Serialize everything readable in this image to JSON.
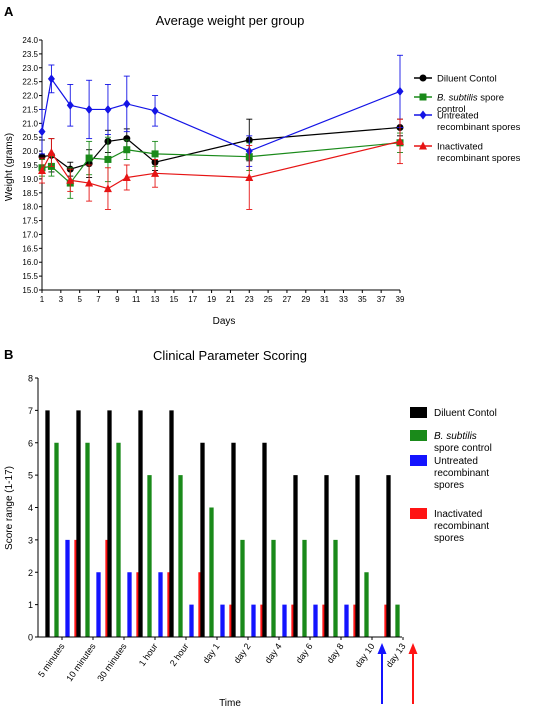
{
  "chart_data": [
    {
      "panel_label": "A",
      "type": "line",
      "title": "Average weight per group",
      "xlabel": "Days",
      "ylabel": "Weight (grams)",
      "ylim": [
        15.0,
        24.0
      ],
      "xlim": [
        1,
        39
      ],
      "y_ticks": [
        "15.0",
        "15.5",
        "16.0",
        "16.5",
        "17.0",
        "17.5",
        "18.0",
        "18.5",
        "19.0",
        "19.5",
        "20.0",
        "20.5",
        "21.0",
        "21.5",
        "22.0",
        "22.5",
        "23.0",
        "23.5",
        "24.0"
      ],
      "x_ticks": [
        "1",
        "3",
        "5",
        "7",
        "9",
        "11",
        "13",
        "15",
        "17",
        "19",
        "21",
        "23",
        "25",
        "27",
        "29",
        "31",
        "33",
        "35",
        "37",
        "39"
      ],
      "legend_position": "right",
      "grid": false,
      "series": [
        {
          "name": "Diluent Contol",
          "color": "#000000",
          "marker": "circle",
          "x": [
            1,
            2,
            4,
            6,
            8,
            10,
            13,
            23,
            39
          ],
          "y": [
            19.8,
            19.85,
            19.35,
            19.55,
            20.35,
            20.45,
            19.6,
            20.4,
            20.85
          ],
          "err": [
            0.6,
            0.6,
            0.25,
            0.5,
            0.4,
            0.35,
            0.3,
            0.75,
            0.3
          ]
        },
        {
          "name_italic": "B. subtilis",
          "name": " spore control",
          "color": "#1a8a1a",
          "marker": "square",
          "x": [
            1,
            2,
            4,
            6,
            8,
            10,
            13,
            23,
            39
          ],
          "y": [
            19.4,
            19.45,
            18.85,
            19.75,
            19.7,
            20.05,
            19.9,
            19.8,
            20.3
          ],
          "err": [
            0.3,
            0.35,
            0.55,
            0.6,
            0.8,
            0.35,
            0.45,
            0.5,
            0.35
          ]
        },
        {
          "name": "Untreated recombinant spores",
          "color": "#1414e6",
          "marker": "diamond",
          "x": [
            1,
            2,
            4,
            6,
            8,
            10,
            13,
            23,
            39
          ],
          "y": [
            20.7,
            22.6,
            21.65,
            21.5,
            21.5,
            21.7,
            21.45,
            20.0,
            22.15
          ],
          "err": [
            0.8,
            0.5,
            0.75,
            1.05,
            0.9,
            1.0,
            0.55,
            0.55,
            1.3
          ]
        },
        {
          "name": "Inactivated recombinant spores",
          "color": "#e61414",
          "marker": "triangle",
          "x": [
            1,
            2,
            4,
            6,
            8,
            10,
            13,
            23,
            39
          ],
          "y": [
            19.3,
            19.95,
            18.95,
            18.85,
            18.65,
            19.05,
            19.2,
            19.05,
            20.35
          ],
          "err": [
            0.45,
            0.5,
            0.4,
            0.65,
            0.75,
            0.45,
            0.5,
            1.15,
            0.8
          ]
        }
      ]
    },
    {
      "panel_label": "B",
      "type": "bar",
      "title": "Clinical Parameter Scoring",
      "xlabel": "Time",
      "ylabel": "Score range (1-17)",
      "ylim": [
        0,
        8
      ],
      "y_ticks": [
        "0",
        "1",
        "2",
        "3",
        "4",
        "5",
        "6",
        "7",
        "8"
      ],
      "categories": [
        "5 minutes",
        "10 minutes",
        "30 minutes",
        "1 hour",
        "2 hour",
        "day 1",
        "day 2",
        "day 4",
        "day 6",
        "day 8",
        "day 10",
        "day 13"
      ],
      "legend_position": "right",
      "grid": false,
      "series": [
        {
          "name": "Diluent Contol",
          "color": "#000000",
          "values": [
            7,
            7,
            7,
            7,
            7,
            6,
            6,
            6,
            5,
            5,
            5,
            5
          ]
        },
        {
          "name_italic": "B. subtilis",
          "name": " spore control",
          "color": "#1a8a1a",
          "values": [
            6,
            6,
            6,
            5,
            5,
            4,
            3,
            3,
            3,
            3,
            2,
            1
          ]
        },
        {
          "name": "Untreated recombinant spores",
          "color": "#1414ff",
          "values": [
            3,
            2,
            2,
            2,
            1,
            1,
            1,
            1,
            1,
            1,
            0,
            0
          ]
        },
        {
          "name": "Inactivated recombinant spores",
          "color": "#ff1414",
          "values": [
            3,
            3,
            2,
            2,
            2,
            1,
            1,
            1,
            1,
            1,
            1,
            0
          ]
        }
      ],
      "annotations": [
        {
          "type": "arrow",
          "category": "day 10",
          "color": "#1414ff"
        },
        {
          "type": "arrow",
          "category": "day 13",
          "color": "#ff1414"
        }
      ]
    }
  ]
}
